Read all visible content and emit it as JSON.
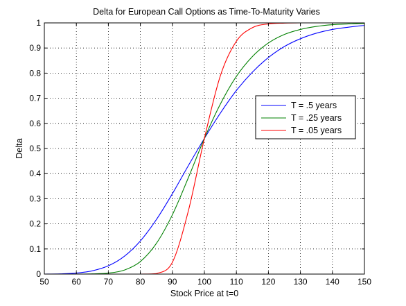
{
  "chart_data": {
    "type": "line",
    "title": "Delta for European Call Options as Time-To-Maturity Varies",
    "xlabel": "Stock Price at t=0",
    "ylabel": "Delta",
    "xlim": [
      50,
      150
    ],
    "ylim": [
      0,
      1
    ],
    "x_ticks": [
      50,
      60,
      70,
      80,
      90,
      100,
      110,
      120,
      130,
      140,
      150
    ],
    "y_ticks": [
      0,
      0.1,
      0.2,
      0.3,
      0.4,
      0.5,
      0.6,
      0.7,
      0.8,
      0.9,
      1
    ],
    "x_tick_labels": [
      "50",
      "60",
      "70",
      "80",
      "90",
      "100",
      "110",
      "120",
      "130",
      "140",
      "150"
    ],
    "y_tick_labels": [
      "0",
      "0.1",
      "0.2",
      "0.3",
      "0.4",
      "0.5",
      "0.6",
      "0.7",
      "0.8",
      "0.9",
      "1"
    ],
    "grid": true,
    "legend_position": "right",
    "x": [
      50,
      55,
      60,
      65,
      70,
      75,
      80,
      85,
      90,
      95,
      100,
      105,
      110,
      115,
      120,
      125,
      130,
      135,
      140,
      145,
      150
    ],
    "series": [
      {
        "name": "T = .5 years",
        "color": "#0000ff",
        "values": [
          0.0,
          0.001,
          0.004,
          0.013,
          0.033,
          0.071,
          0.132,
          0.217,
          0.32,
          0.432,
          0.54,
          0.641,
          0.731,
          0.804,
          0.862,
          0.906,
          0.937,
          0.959,
          0.974,
          0.983,
          0.99
        ]
      },
      {
        "name": "T = .25 years",
        "color": "#008000",
        "values": [
          0.0,
          0.0,
          0.0,
          0.001,
          0.004,
          0.016,
          0.05,
          0.122,
          0.236,
          0.384,
          0.54,
          0.677,
          0.787,
          0.866,
          0.92,
          0.954,
          0.974,
          0.986,
          0.993,
          0.996,
          0.998
        ]
      },
      {
        "name": "T = .05 years",
        "color": "#ff0000",
        "values": [
          0.0,
          0.0,
          0.0,
          0.0,
          0.0,
          0.0,
          0.0,
          0.002,
          0.047,
          0.252,
          0.54,
          0.79,
          0.927,
          0.981,
          0.996,
          0.999,
          1.0,
          1.0,
          1.0,
          1.0,
          1.0
        ]
      }
    ]
  }
}
